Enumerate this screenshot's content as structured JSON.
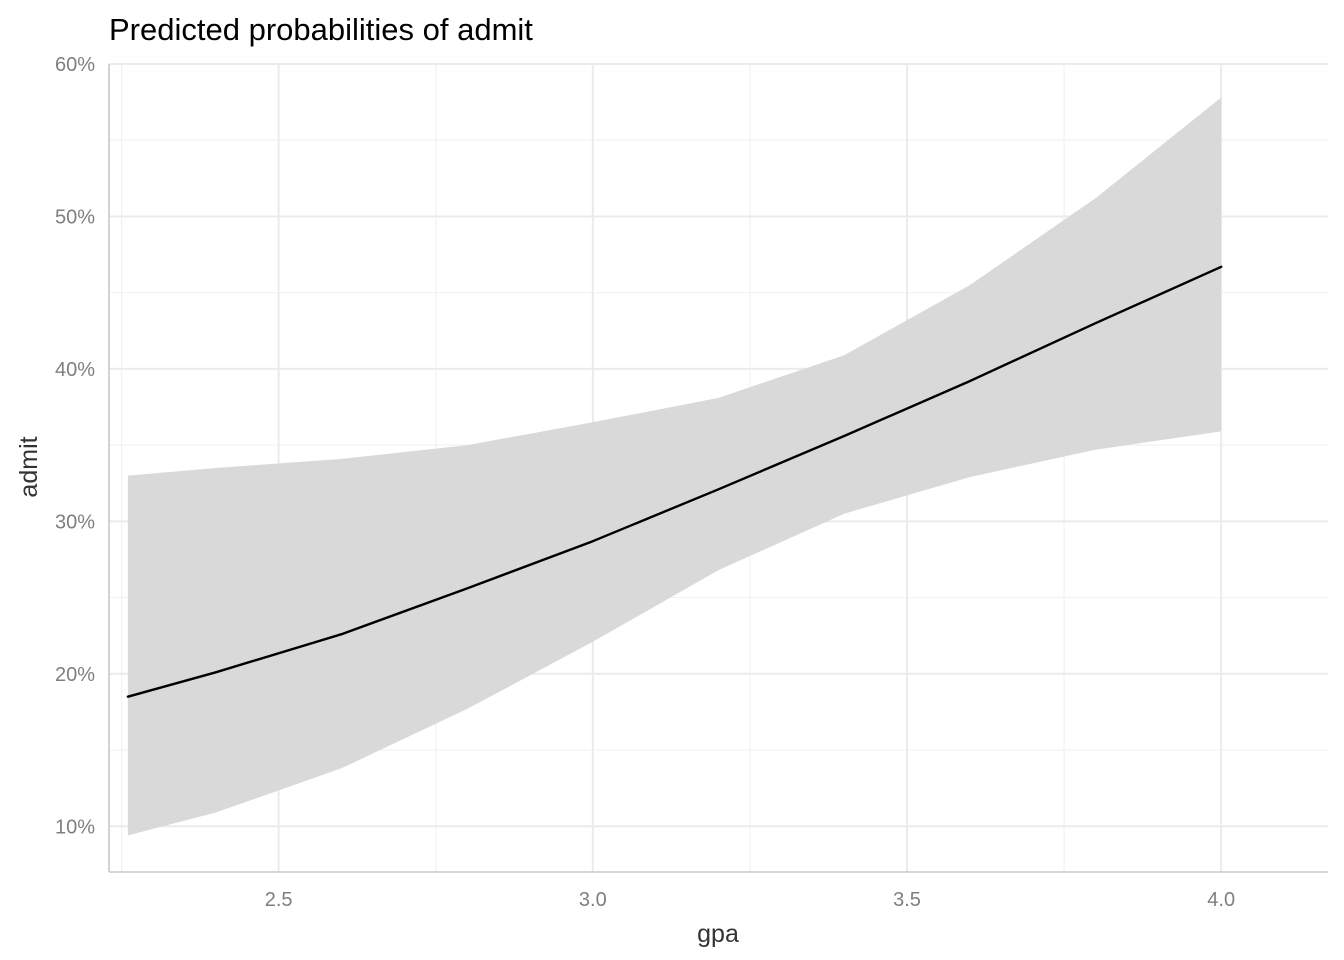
{
  "chart_data": {
    "type": "line",
    "title": "Predicted probabilities of admit",
    "xlabel": "gpa",
    "ylabel": "admit",
    "xlim": [
      2.23,
      4.17
    ],
    "ylim": [
      0.07,
      0.6
    ],
    "x_ticks": [
      2.5,
      3.0,
      3.5,
      4.0
    ],
    "x_tick_labels": [
      "2.5",
      "3.0",
      "3.5",
      "4.0"
    ],
    "x_minor_ticks": [
      2.25,
      2.75,
      3.25,
      3.75
    ],
    "y_ticks": [
      0.1,
      0.2,
      0.3,
      0.4,
      0.5,
      0.6
    ],
    "y_tick_labels": [
      "10%",
      "20%",
      "30%",
      "40%",
      "50%",
      "60%"
    ],
    "y_minor_ticks": [
      0.15,
      0.25,
      0.35,
      0.45,
      0.55
    ],
    "grid": true,
    "legend": "none",
    "series": [
      {
        "x": [
          2.26,
          2.4,
          2.6,
          2.8,
          3.0,
          3.2,
          3.4,
          3.6,
          3.8,
          4.0
        ],
        "values": [
          0.185,
          0.201,
          0.226,
          0.256,
          0.287,
          0.321,
          0.356,
          0.392,
          0.43,
          0.467
        ],
        "lower": [
          0.094,
          0.109,
          0.138,
          0.177,
          0.221,
          0.268,
          0.305,
          0.329,
          0.347,
          0.359
        ],
        "upper": [
          0.33,
          0.335,
          0.341,
          0.35,
          0.365,
          0.381,
          0.409,
          0.455,
          0.512,
          0.578
        ]
      }
    ],
    "colors": {
      "line": "#000000",
      "ribbon": "#d9d9d9",
      "grid_major": "#ebebeb",
      "grid_minor": "#f2f2f2",
      "axis_line": "#c8c8c8",
      "tick_label": "#7f7f7f",
      "axis_title": "#333333",
      "title": "#000000"
    }
  }
}
